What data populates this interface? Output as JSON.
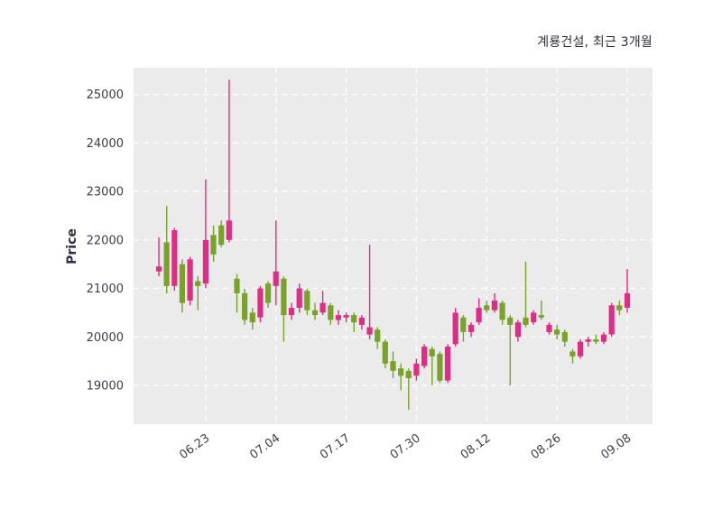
{
  "chart_data": {
    "type": "candlestick",
    "title": "계룡건설, 최근 3개월",
    "ylabel": "Price",
    "ylim": [
      18200,
      25550
    ],
    "yticks": [
      19000,
      20000,
      21000,
      22000,
      23000,
      24000,
      25000
    ],
    "xticks": [
      {
        "label": "06.23",
        "index": 6
      },
      {
        "label": "07.04",
        "index": 15
      },
      {
        "label": "07.17",
        "index": 24
      },
      {
        "label": "07.30",
        "index": 33
      },
      {
        "label": "08.12",
        "index": 42
      },
      {
        "label": "08.26",
        "index": 51
      },
      {
        "label": "09.08",
        "index": 60
      }
    ],
    "up_color": "#de2d86",
    "down_color": "#79a22a",
    "plot_bg": "#ebebeb",
    "grid_color": "#ffffff",
    "tick_color": "#3d3d4d",
    "grid": true,
    "legend": "none",
    "candle_fields": [
      "date",
      "open",
      "high",
      "low",
      "close"
    ],
    "candles": [
      [
        "06.13",
        21350,
        22050,
        21250,
        21450
      ],
      [
        "06.16",
        21950,
        22700,
        20900,
        21050
      ],
      [
        "06.17",
        21050,
        22250,
        20950,
        22200
      ],
      [
        "06.18",
        21500,
        21600,
        20500,
        20700
      ],
      [
        "06.19",
        20750,
        21650,
        20650,
        21600
      ],
      [
        "06.20",
        21150,
        21250,
        20550,
        21050
      ],
      [
        "06.23",
        21100,
        23250,
        21000,
        22000
      ],
      [
        "06.24",
        22100,
        22300,
        21550,
        21700
      ],
      [
        "06.25",
        22300,
        22400,
        21850,
        21900
      ],
      [
        "06.26",
        22000,
        25300,
        21950,
        22400
      ],
      [
        "06.27",
        21200,
        21300,
        20500,
        20900
      ],
      [
        "06.30",
        20900,
        21000,
        20250,
        20350
      ],
      [
        "07.01",
        20500,
        20600,
        20150,
        20300
      ],
      [
        "07.02",
        20400,
        21050,
        20300,
        21000
      ],
      [
        "07.03",
        21100,
        21150,
        20600,
        20700
      ],
      [
        "07.04",
        21050,
        22400,
        20650,
        21350
      ],
      [
        "07.07",
        21200,
        21250,
        19900,
        20450
      ],
      [
        "07.08",
        20450,
        20700,
        20350,
        20600
      ],
      [
        "07.09",
        20600,
        21100,
        20500,
        21000
      ],
      [
        "07.10",
        20950,
        21000,
        20450,
        20550
      ],
      [
        "07.11",
        20550,
        20700,
        20350,
        20450
      ],
      [
        "07.14",
        20500,
        20950,
        20450,
        20700
      ],
      [
        "07.15",
        20650,
        20700,
        20250,
        20350
      ],
      [
        "07.16",
        20350,
        20550,
        20250,
        20450
      ],
      [
        "07.17",
        20400,
        20500,
        20300,
        20450
      ],
      [
        "07.18",
        20450,
        20500,
        20100,
        20300
      ],
      [
        "07.21",
        20250,
        20450,
        20150,
        20400
      ],
      [
        "07.22",
        20050,
        21900,
        19950,
        20200
      ],
      [
        "07.23",
        20150,
        20200,
        19750,
        19900
      ],
      [
        "07.24",
        19900,
        19950,
        19350,
        19450
      ],
      [
        "07.25",
        19500,
        19700,
        19150,
        19300
      ],
      [
        "07.28",
        19350,
        19450,
        18900,
        19200
      ],
      [
        "07.29",
        19300,
        19350,
        18500,
        19150
      ],
      [
        "07.30",
        19200,
        19550,
        19100,
        19450
      ],
      [
        "07.31",
        19400,
        19850,
        19350,
        19800
      ],
      [
        "08.01",
        19750,
        19800,
        19000,
        19600
      ],
      [
        "08.04",
        19650,
        19700,
        19050,
        19100
      ],
      [
        "08.05",
        19100,
        19850,
        19050,
        19800
      ],
      [
        "08.06",
        19850,
        20600,
        19800,
        20500
      ],
      [
        "08.07",
        20400,
        20450,
        19900,
        20100
      ],
      [
        "08.08",
        20100,
        20300,
        20000,
        20250
      ],
      [
        "08.11",
        20300,
        20800,
        20250,
        20600
      ],
      [
        "08.12",
        20650,
        20750,
        20500,
        20550
      ],
      [
        "08.13",
        20550,
        20900,
        20500,
        20750
      ],
      [
        "08.14",
        20700,
        20750,
        20250,
        20350
      ],
      [
        "08.18",
        20400,
        20450,
        19000,
        20250
      ],
      [
        "08.19",
        20000,
        20350,
        19900,
        20300
      ],
      [
        "08.20",
        20400,
        21550,
        20200,
        20250
      ],
      [
        "08.21",
        20300,
        20550,
        20250,
        20500
      ],
      [
        "08.22",
        20450,
        20750,
        20350,
        20400
      ],
      [
        "08.25",
        20100,
        20300,
        20050,
        20250
      ],
      [
        "08.26",
        20150,
        20250,
        19950,
        20050
      ],
      [
        "08.27",
        20100,
        20150,
        19800,
        19900
      ],
      [
        "08.28",
        19700,
        19750,
        19450,
        19600
      ],
      [
        "08.29",
        19600,
        19950,
        19550,
        19900
      ],
      [
        "09.01",
        19900,
        20000,
        19800,
        19950
      ],
      [
        "09.02",
        19950,
        20050,
        19850,
        19900
      ],
      [
        "09.03",
        19900,
        20100,
        19850,
        20050
      ],
      [
        "09.04",
        20050,
        20700,
        20000,
        20650
      ],
      [
        "09.05",
        20650,
        20750,
        20450,
        20550
      ],
      [
        "09.08",
        20600,
        21400,
        20500,
        20900
      ]
    ]
  }
}
